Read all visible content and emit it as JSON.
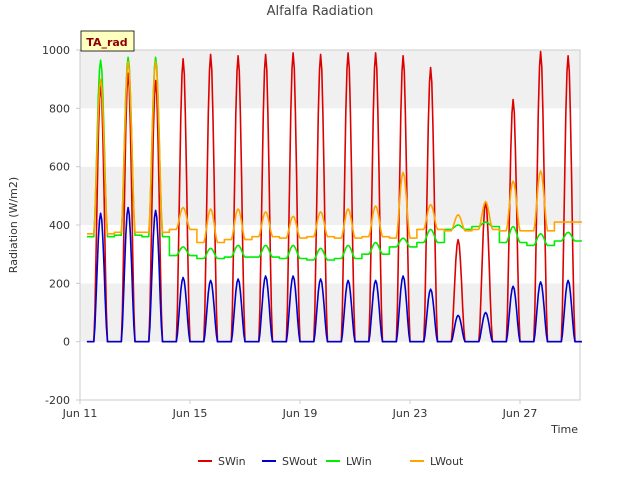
{
  "chart_data": {
    "type": "line",
    "title": "Alfalfa Radiation",
    "badge": "TA_rad",
    "xlabel": "Time",
    "ylabel": "Radiation (W/m2)",
    "ylim": [
      -200,
      1000
    ],
    "y_ticks": [
      -200,
      0,
      200,
      400,
      600,
      800,
      1000
    ],
    "x_ticks": [
      "Jun 11",
      "Jun 15",
      "Jun 19",
      "Jun 23",
      "Jun 27"
    ],
    "x_start": "Jun 11",
    "x_end": "Jun 29",
    "grid": "horizontal bands",
    "legend_position": "bottom",
    "days": [
      "Jun 11",
      "Jun 12",
      "Jun 13",
      "Jun 14",
      "Jun 15",
      "Jun 16",
      "Jun 17",
      "Jun 18",
      "Jun 19",
      "Jun 20",
      "Jun 21",
      "Jun 22",
      "Jun 23",
      "Jun 24",
      "Jun 25",
      "Jun 26",
      "Jun 27",
      "Jun 28"
    ],
    "series": [
      {
        "name": "SWin",
        "color": "#dd0000",
        "daily_peak": [
          880,
          920,
          895,
          970,
          985,
          980,
          985,
          990,
          985,
          990,
          990,
          980,
          940,
          350,
          480,
          830,
          995,
          980
        ]
      },
      {
        "name": "SWout",
        "color": "#0000cc",
        "daily_peak": [
          440,
          460,
          450,
          220,
          210,
          215,
          225,
          225,
          215,
          210,
          210,
          225,
          180,
          90,
          100,
          190,
          205,
          210
        ]
      },
      {
        "name": "LWin",
        "color": "#00ee00",
        "daily_peak": [
          965,
          975,
          975,
          325,
          320,
          330,
          330,
          330,
          320,
          330,
          340,
          355,
          385,
          400,
          410,
          395,
          370,
          375
        ],
        "daily_base": [
          360,
          365,
          360,
          295,
          285,
          290,
          290,
          285,
          280,
          285,
          300,
          325,
          340,
          385,
          395,
          340,
          330,
          345
        ]
      },
      {
        "name": "LWout",
        "color": "#ffa500",
        "daily_peak": [
          900,
          960,
          960,
          460,
          455,
          455,
          445,
          430,
          445,
          455,
          465,
          580,
          470,
          435,
          480,
          550,
          585,
          410
        ],
        "daily_base": [
          370,
          375,
          375,
          385,
          340,
          350,
          360,
          355,
          360,
          355,
          360,
          355,
          385,
          380,
          385,
          380,
          380,
          410
        ]
      }
    ]
  }
}
